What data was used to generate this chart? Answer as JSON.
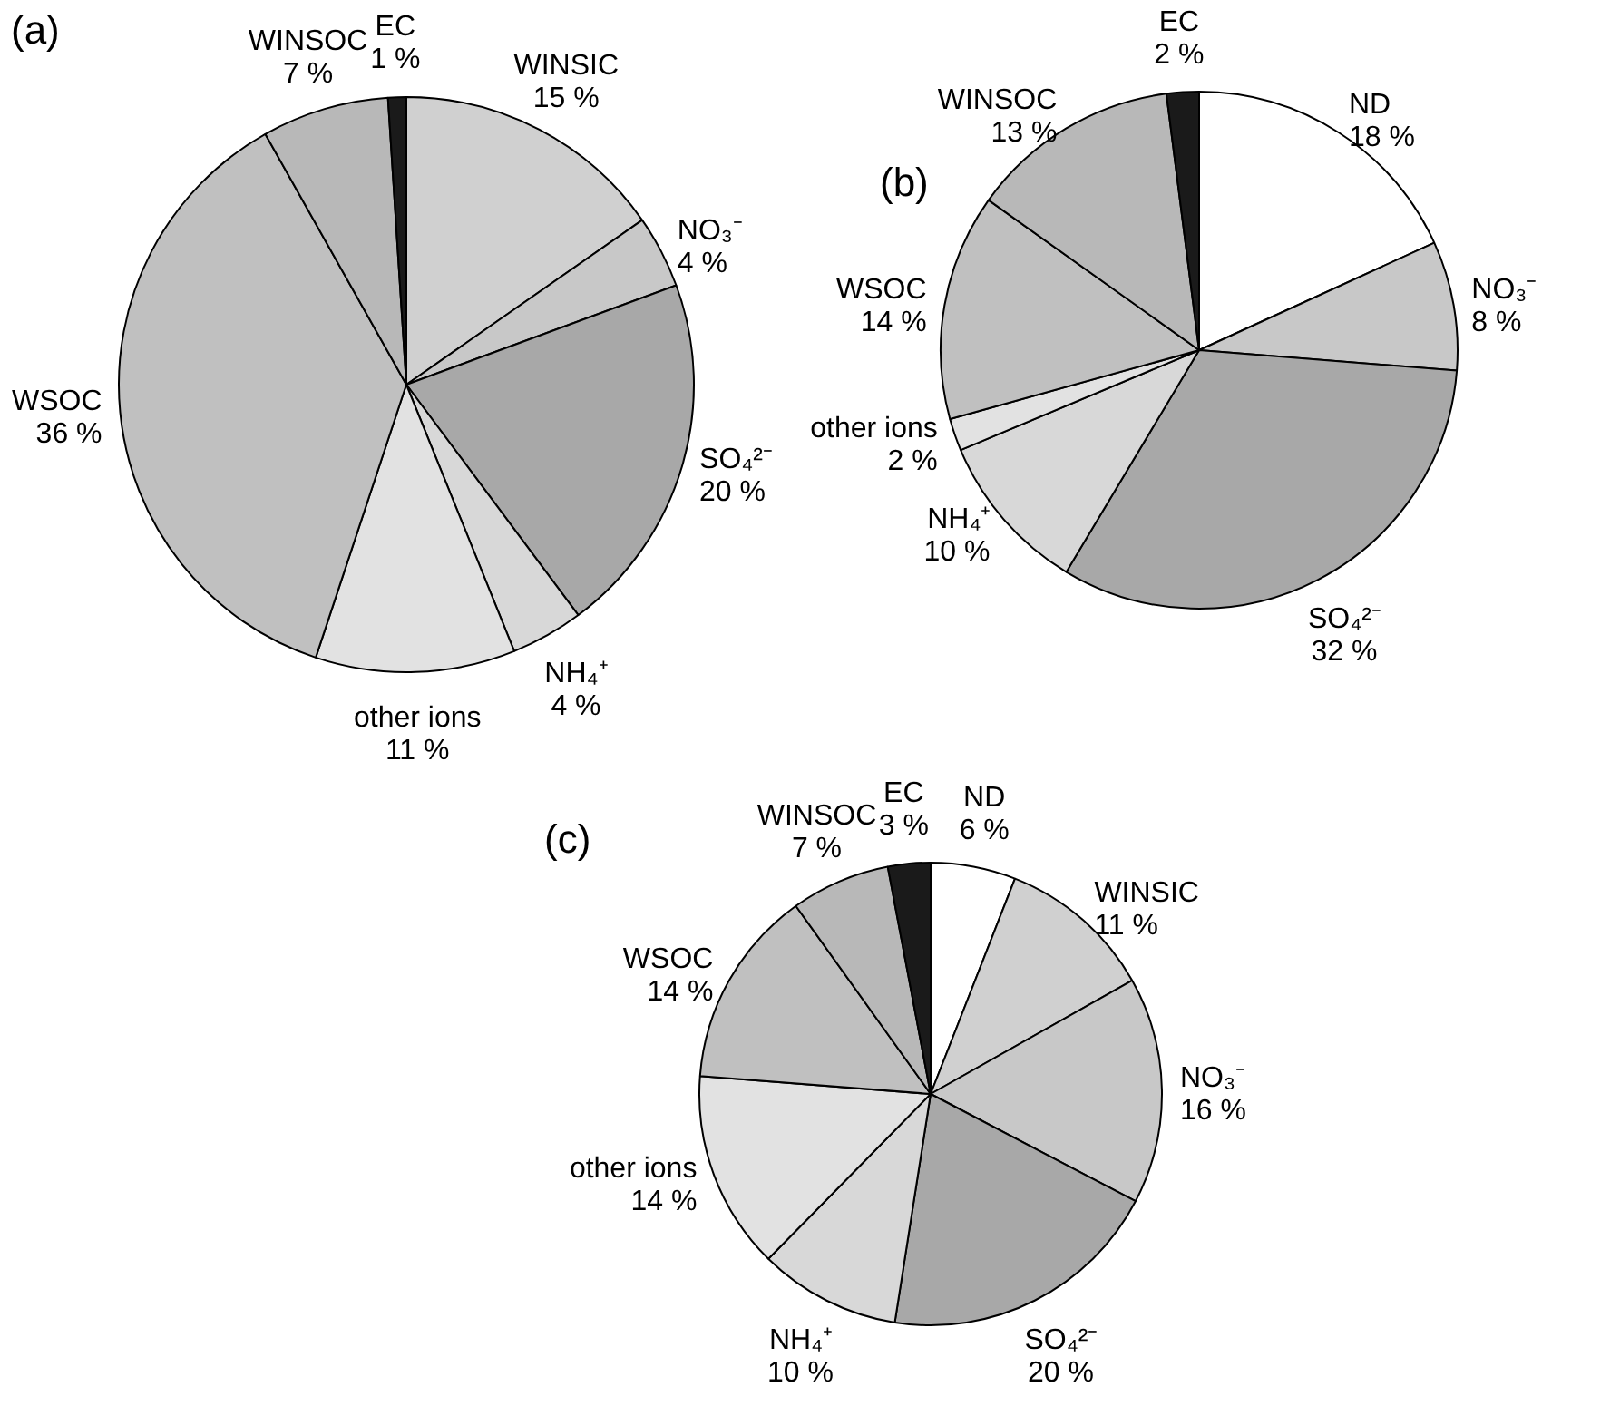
{
  "chart_data": [
    {
      "type": "pie",
      "title": "(a)",
      "categories": [
        "WINSIC",
        "NO₃⁻",
        "SO₄²⁻",
        "NH₄⁺",
        "other ions",
        "WSOC",
        "WINSOC",
        "EC"
      ],
      "values": [
        15,
        4,
        20,
        4,
        11,
        36,
        7,
        1
      ],
      "value_labels": [
        "15 %",
        "4 %",
        "20 %",
        "4 %",
        "11 %",
        "36 %",
        "7 %",
        "1 %"
      ],
      "colors": [
        "#d0d0d0",
        "#c8c8c8",
        "#a8a8a8",
        "#d8d8d8",
        "#e2e2e2",
        "#c0c0c0",
        "#b8b8b8",
        "#1a1a1a"
      ],
      "legend": false
    },
    {
      "type": "pie",
      "title": "(b)",
      "categories": [
        "ND",
        "NO₃⁻",
        "SO₄²⁻",
        "NH₄⁺",
        "other ions",
        "WSOC",
        "WINSOC",
        "EC"
      ],
      "values": [
        18,
        8,
        32,
        10,
        2,
        14,
        13,
        2
      ],
      "value_labels": [
        "18 %",
        "8 %",
        "32 %",
        "10 %",
        "2 %",
        "14 %",
        "13 %",
        "2 %"
      ],
      "colors": [
        "#ffffff",
        "#c8c8c8",
        "#a8a8a8",
        "#d8d8d8",
        "#e2e2e2",
        "#c0c0c0",
        "#b8b8b8",
        "#1a1a1a"
      ],
      "legend": false
    },
    {
      "type": "pie",
      "title": "(c)",
      "categories": [
        "ND",
        "WINSIC",
        "NO₃⁻",
        "SO₄²⁻",
        "NH₄⁺",
        "other ions",
        "WSOC",
        "WINSOC",
        "EC"
      ],
      "values": [
        6,
        11,
        16,
        20,
        10,
        14,
        14,
        7,
        3
      ],
      "value_labels": [
        "6 %",
        "11 %",
        "16 %",
        "20 %",
        "10 %",
        "14 %",
        "14 %",
        "7 %",
        "3 %"
      ],
      "colors": [
        "#ffffff",
        "#d0d0d0",
        "#c8c8c8",
        "#a8a8a8",
        "#d8d8d8",
        "#e2e2e2",
        "#c0c0c0",
        "#b8b8b8",
        "#1a1a1a"
      ],
      "legend": false
    }
  ]
}
